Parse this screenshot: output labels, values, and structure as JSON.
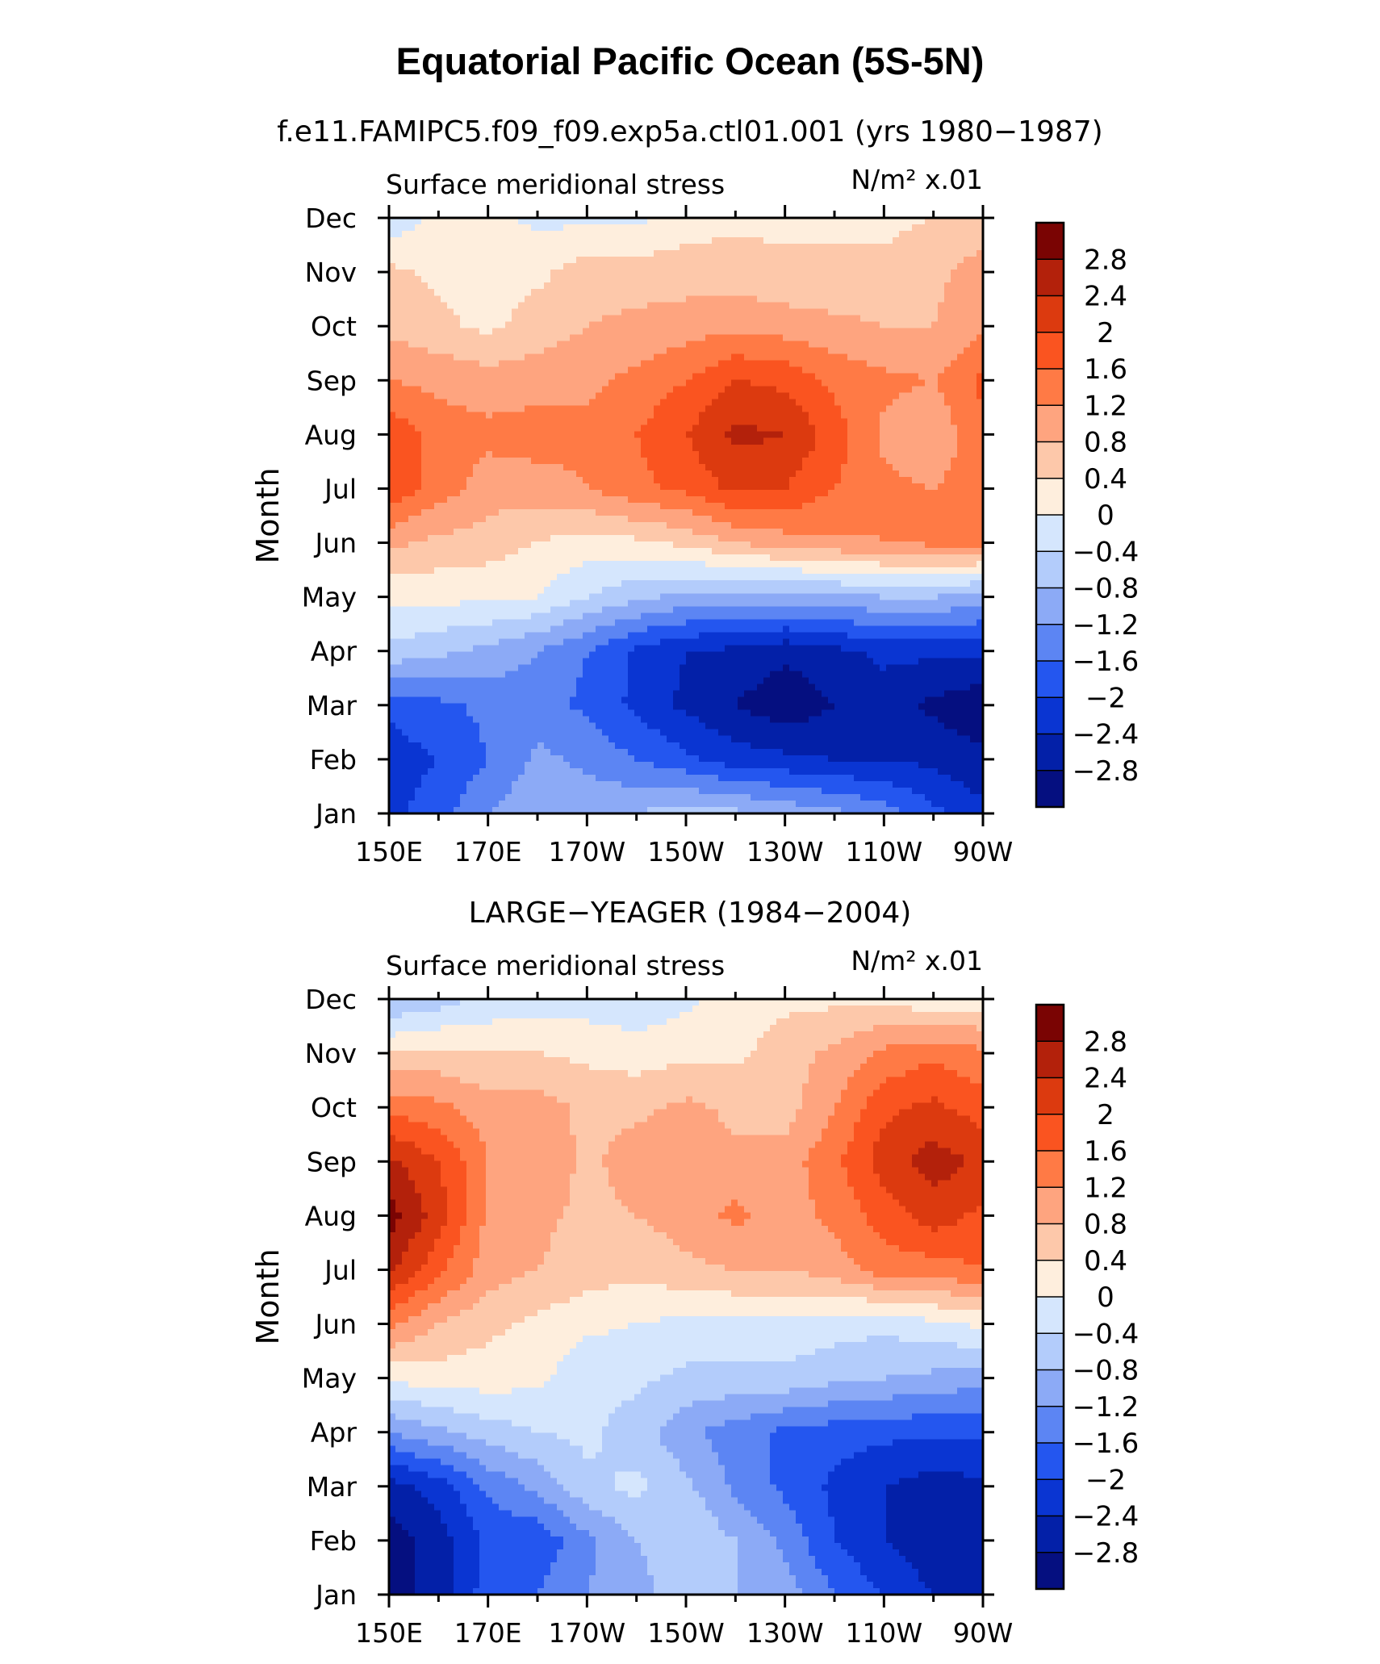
{
  "figure": {
    "title": "Equatorial Pacific Ocean (5S-5N)"
  },
  "colorbar": {
    "labels": [
      "2.8",
      "2.4",
      "2",
      "1.6",
      "1.2",
      "0.8",
      "0.4",
      "0",
      "−0.4",
      "−0.8",
      "−1.2",
      "−1.6",
      "−2",
      "−2.4",
      "−2.8"
    ],
    "colors": [
      "#7a0403",
      "#b3210b",
      "#dc3a0f",
      "#fa5420",
      "#ff7a45",
      "#fea47f",
      "#fdc8aa",
      "#feeedd",
      "#d5e6fd",
      "#b3ccfb",
      "#8caaf6",
      "#5c85f3",
      "#2456ef",
      "#0a35d2",
      "#0320a8",
      "#050f80"
    ]
  },
  "chart_data": [
    {
      "type": "heatmap",
      "subtitle": "f.e11.FAMIPC5.f09_f09.exp5a.ctl01.001 (yrs 1980−1987)",
      "left_string": "Surface meridional stress",
      "right_string": "N/m² x.01",
      "ylabel": "Month",
      "x_tick_labels": [
        "150E",
        "170E",
        "170W",
        "150W",
        "130W",
        "110W",
        "90W"
      ],
      "x": [
        150,
        160,
        170,
        180,
        190,
        200,
        210,
        220,
        230,
        240,
        250,
        260,
        270
      ],
      "y": [
        "Jan",
        "Feb",
        "Mar",
        "Apr",
        "May",
        "Jun",
        "Jul",
        "Aug",
        "Sep",
        "Oct",
        "Nov",
        "Dec"
      ],
      "z": [
        [
          -2.1,
          -1.8,
          -1.2,
          -0.9,
          -0.9,
          -0.8,
          -0.6,
          -0.7,
          -0.9,
          -1.1,
          -1.4,
          -1.9,
          -2.3
        ],
        [
          -2.2,
          -2.0,
          -1.6,
          -1.1,
          -1.3,
          -1.6,
          -1.9,
          -2.2,
          -2.3,
          -2.4,
          -2.4,
          -2.5,
          -2.7
        ],
        [
          -1.9,
          -1.7,
          -1.5,
          -1.4,
          -1.7,
          -2.1,
          -2.5,
          -2.8,
          -3.1,
          -2.8,
          -2.6,
          -2.9,
          -3.1
        ],
        [
          -0.5,
          -0.7,
          -0.9,
          -1.2,
          -1.6,
          -2.1,
          -2.4,
          -2.5,
          -2.7,
          -2.5,
          -2.3,
          -2.3,
          -2.3
        ],
        [
          0.1,
          0.1,
          0.1,
          0.0,
          -0.4,
          -0.7,
          -0.9,
          -1.0,
          -1.0,
          -0.9,
          -0.8,
          -0.8,
          -1.0
        ],
        [
          0.9,
          0.7,
          0.6,
          0.4,
          0.2,
          0.3,
          0.5,
          0.8,
          1.0,
          1.1,
          1.2,
          1.3,
          1.3
        ],
        [
          1.9,
          1.4,
          1.0,
          1.0,
          1.2,
          1.5,
          1.7,
          2.1,
          2.0,
          1.6,
          1.3,
          1.2,
          1.4
        ],
        [
          1.9,
          1.4,
          1.3,
          1.4,
          1.3,
          1.6,
          2.0,
          2.5,
          2.4,
          1.8,
          1.1,
          0.9,
          1.5
        ],
        [
          1.2,
          1.1,
          1.0,
          1.0,
          1.1,
          1.3,
          1.6,
          2.0,
          1.9,
          1.5,
          1.3,
          1.2,
          1.7
        ],
        [
          0.7,
          0.5,
          0.3,
          0.6,
          0.8,
          0.9,
          1.0,
          1.1,
          1.0,
          0.9,
          0.8,
          0.8,
          1.1
        ],
        [
          0.5,
          0.3,
          0.2,
          0.3,
          0.6,
          0.6,
          0.6,
          0.6,
          0.5,
          0.5,
          0.5,
          0.7,
          1.0
        ],
        [
          -0.3,
          0.1,
          0.1,
          -0.1,
          -0.1,
          -0.1,
          0.2,
          0.3,
          0.3,
          0.3,
          0.3,
          0.4,
          0.5
        ]
      ],
      "levels": [
        -2.8,
        -2.4,
        -2.0,
        -1.6,
        -1.2,
        -0.8,
        -0.4,
        0.0,
        0.4,
        0.8,
        1.2,
        1.6,
        2.0,
        2.4,
        2.8
      ]
    },
    {
      "type": "heatmap",
      "subtitle": "LARGE−YEAGER (1984−2004)",
      "left_string": "Surface meridional stress",
      "right_string": "N/m² x.01",
      "ylabel": "Month",
      "x_tick_labels": [
        "150E",
        "170E",
        "170W",
        "150W",
        "130W",
        "110W",
        "90W"
      ],
      "x": [
        150,
        160,
        170,
        180,
        190,
        200,
        210,
        220,
        230,
        240,
        250,
        260,
        270
      ],
      "y": [
        "Jan",
        "Feb",
        "Mar",
        "Apr",
        "May",
        "Jun",
        "Jul",
        "Aug",
        "Sep",
        "Oct",
        "Nov",
        "Dec"
      ],
      "z": [
        [
          -3.0,
          -2.6,
          -1.8,
          -1.6,
          -1.2,
          -1.0,
          -0.5,
          -0.8,
          -1.0,
          -1.6,
          -2.0,
          -2.4,
          -2.7
        ],
        [
          -3.0,
          -2.6,
          -1.9,
          -1.9,
          -1.3,
          -0.8,
          -0.4,
          -0.8,
          -1.3,
          -2.0,
          -2.4,
          -2.7,
          -2.7
        ],
        [
          -2.6,
          -2.2,
          -1.5,
          -1.1,
          -0.5,
          -0.3,
          -0.7,
          -1.3,
          -1.7,
          -2.1,
          -2.4,
          -2.6,
          -2.5
        ],
        [
          -1.2,
          -0.9,
          -0.6,
          -0.4,
          -0.3,
          -0.6,
          -1.1,
          -1.4,
          -1.7,
          -1.8,
          -1.9,
          -1.9,
          -1.9
        ],
        [
          0.1,
          0.2,
          0.2,
          0.1,
          -0.3,
          -0.3,
          -0.5,
          -0.5,
          -0.5,
          -0.7,
          -0.8,
          -0.9,
          -1.1
        ],
        [
          1.3,
          0.8,
          0.5,
          0.3,
          0.1,
          0.0,
          -0.1,
          -0.1,
          -0.1,
          -0.2,
          -0.3,
          -0.1,
          0.1
        ],
        [
          2.5,
          1.7,
          1.0,
          0.8,
          0.6,
          0.5,
          0.7,
          0.8,
          0.8,
          1.0,
          1.4,
          1.4,
          1.6
        ],
        [
          3.0,
          2.2,
          1.1,
          0.9,
          0.7,
          0.8,
          1.0,
          1.3,
          1.0,
          1.3,
          1.8,
          2.2,
          1.9
        ],
        [
          2.5,
          2.0,
          1.2,
          1.1,
          0.7,
          1.0,
          1.1,
          0.9,
          1.0,
          1.5,
          2.2,
          2.6,
          2.3
        ],
        [
          1.5,
          1.3,
          1.0,
          1.0,
          0.7,
          0.7,
          0.9,
          0.7,
          0.6,
          1.2,
          1.9,
          2.1,
          1.8
        ],
        [
          0.4,
          0.5,
          0.4,
          0.4,
          0.3,
          0.2,
          0.3,
          0.3,
          0.6,
          0.9,
          1.3,
          1.5,
          1.3
        ],
        [
          -0.8,
          -0.6,
          -0.3,
          -0.2,
          -0.2,
          -0.3,
          -0.1,
          0.2,
          0.3,
          0.3,
          0.3,
          0.1,
          0.2
        ]
      ],
      "levels": [
        -2.8,
        -2.4,
        -2.0,
        -1.6,
        -1.2,
        -0.8,
        -0.4,
        0.0,
        0.4,
        0.8,
        1.2,
        1.6,
        2.0,
        2.4,
        2.8
      ]
    }
  ]
}
